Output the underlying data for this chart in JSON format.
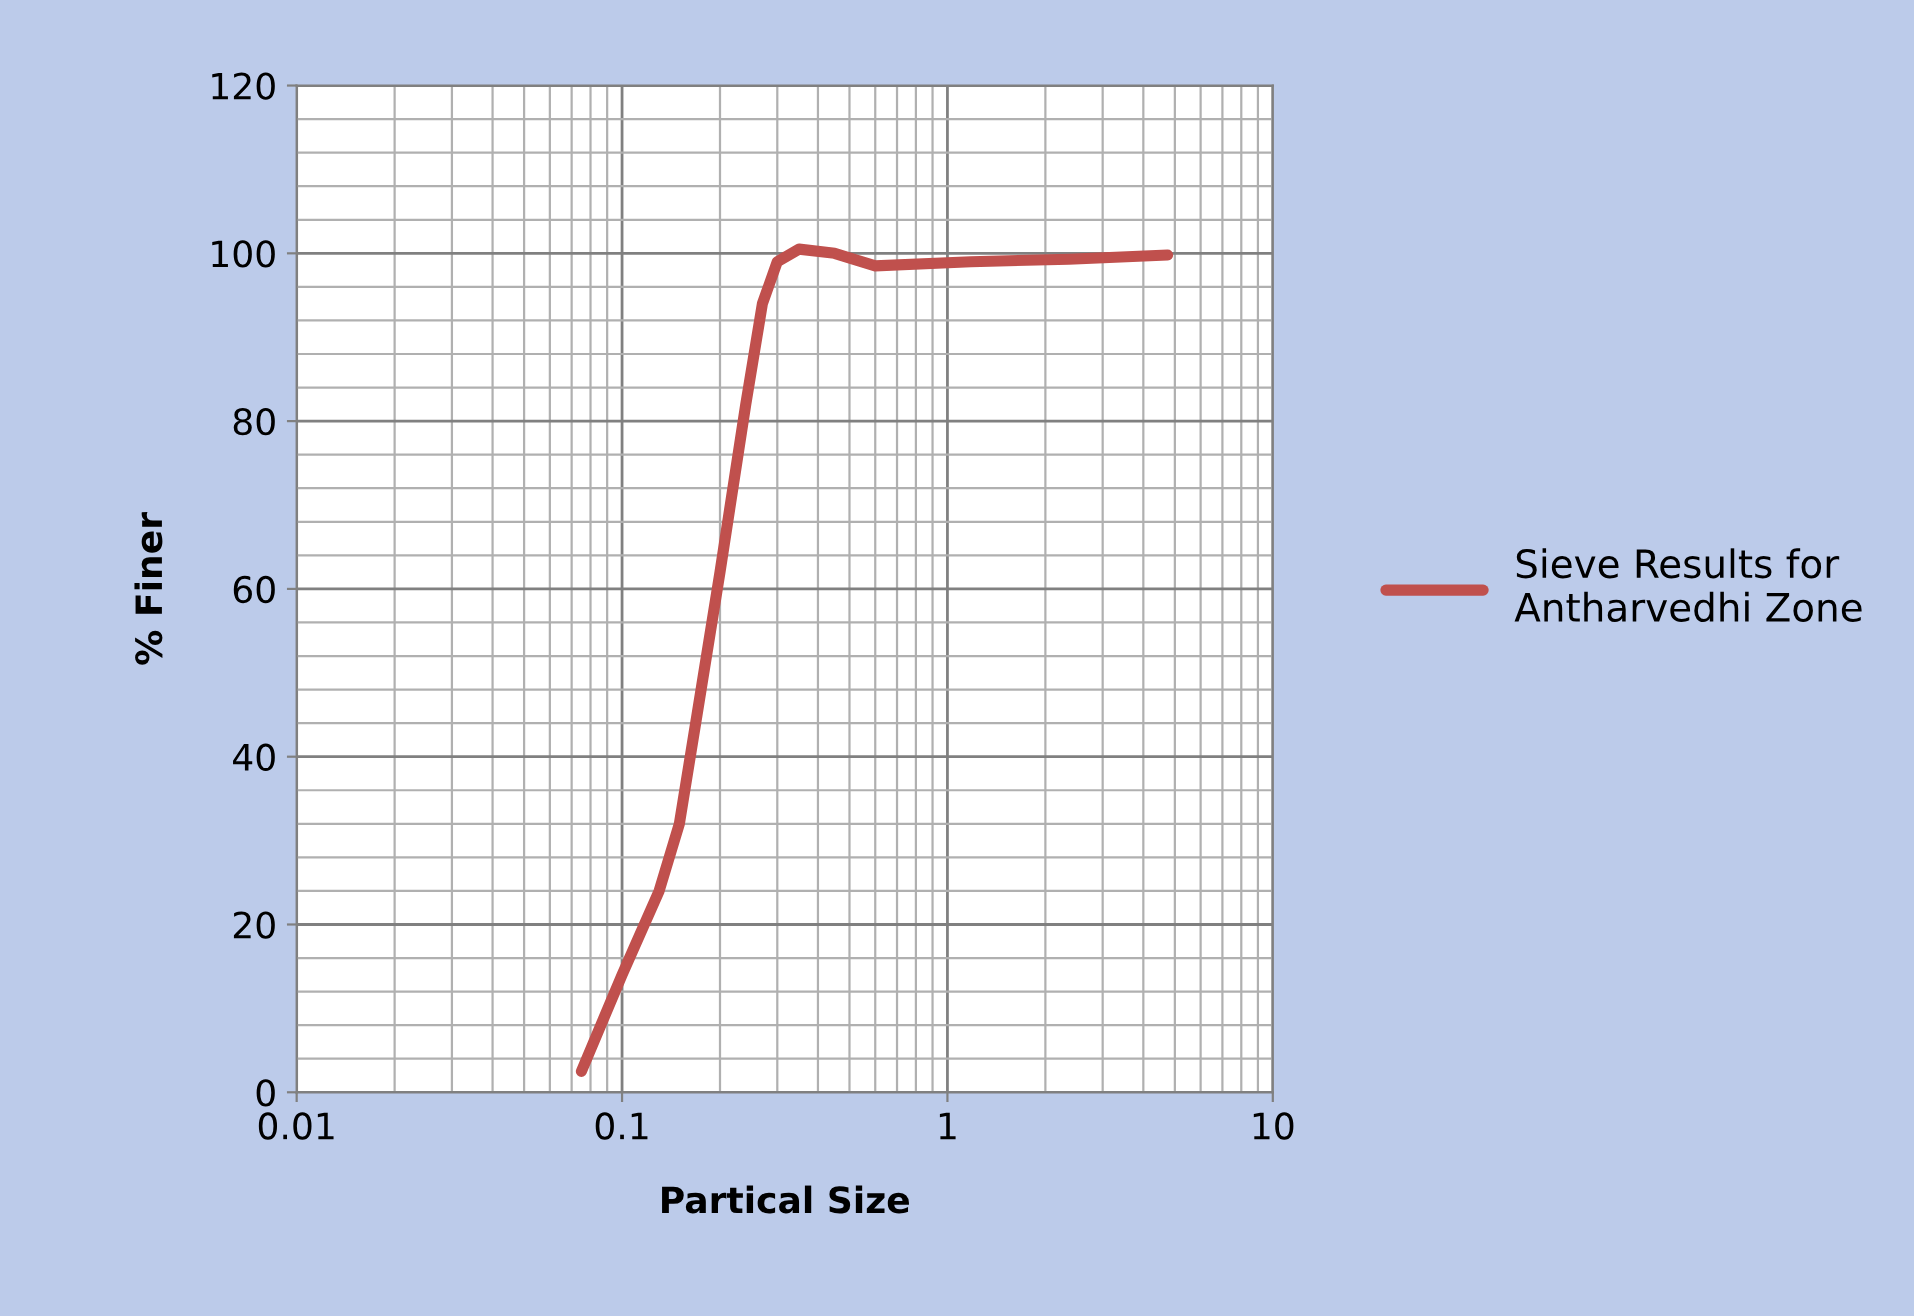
{
  "chart_data": {
    "type": "line",
    "xlabel": "Partical Size",
    "ylabel": "% Finer",
    "log": "x",
    "grid": true,
    "legend": "right",
    "marker": "none",
    "line_style": "solid",
    "xlim": [
      0.01,
      10
    ],
    "xticks": [
      0.01,
      0.1,
      1,
      10
    ],
    "ylim": [
      0,
      120
    ],
    "yticks": [
      0,
      20,
      40,
      60,
      80,
      100,
      120
    ],
    "series": [
      {
        "name": "Sieve Results for Antharvedhi Zone",
        "color": "#c0504d",
        "x": [
          0.075,
          0.1,
          0.13,
          0.15,
          0.17,
          0.2,
          0.24,
          0.27,
          0.3,
          0.35,
          0.45,
          0.6,
          1.18,
          2.36,
          4.75
        ],
        "values": [
          2.5,
          14,
          24,
          32,
          45,
          62,
          82,
          94,
          99,
          100.5,
          100,
          98.5,
          99,
          99.3,
          99.8
        ]
      }
    ]
  }
}
